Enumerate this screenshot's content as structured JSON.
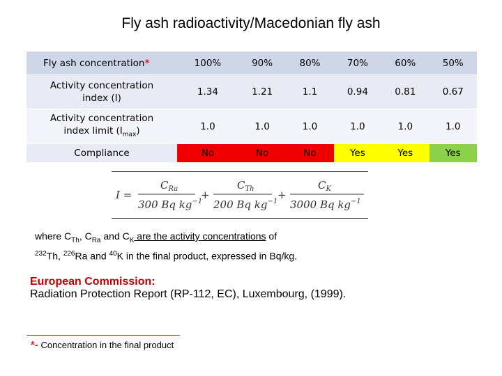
{
  "title": "Fly ash radioactivity/Macedonian fly ash",
  "table": {
    "row1": {
      "label": "Fly ash concentration",
      "marker": "*",
      "values": [
        "100%",
        "90%",
        "80%",
        "70%",
        "60%",
        "50%"
      ]
    },
    "row2": {
      "label_line1": "Activity concentration",
      "label_line2": "index (I)",
      "values": [
        "1.34",
        "1.21",
        "1.1",
        "0.94",
        "0.81",
        "0.67"
      ]
    },
    "row3": {
      "label_line1": "Activity concentration",
      "label_line2_pre": "index limit (I",
      "label_sub": "max",
      "label_line2_post": ")",
      "values": [
        "1.0",
        "1.0",
        "1.0",
        "1.0",
        "1.0",
        "1.0"
      ]
    },
    "row4": {
      "label": "Compliance",
      "values": [
        "No",
        "No",
        "No",
        "Yes",
        "Yes",
        "Yes"
      ],
      "colors": [
        "#f00000",
        "#f00000",
        "#f00000",
        "#ffff00",
        "#ffff00",
        "#8cd14a"
      ]
    }
  },
  "formula": {
    "lhs": "I =",
    "t1_num": "C",
    "t1_num_sub": "Ra",
    "t1_den": "300  Bq kg",
    "t2_num": "C",
    "t2_num_sub": "Th",
    "t2_den": "200  Bq kg",
    "t3_num": "C",
    "t3_num_sub": "K",
    "t3_den": "3000  Bq kg",
    "exp": "−1",
    "plus": "+"
  },
  "note": {
    "w1": "where C",
    "s1": "Th",
    "w2": ", C",
    "s2": "Ra",
    "w3": " and C",
    "s3": "K",
    "w4": " are the activity concentrations",
    "w5": " of",
    "p1": "232",
    "w6": "Th, ",
    "p2": "226",
    "w7": "Ra and ",
    "p3": "40",
    "w8": "K in the final product, expressed in Bq/kg."
  },
  "reference": {
    "title": "European Commission:",
    "text": "Radiation Protection Report (RP-112, EC), Luxembourg, (1999)."
  },
  "footnote": {
    "marker": "*-",
    "text": " Concentration in the final product"
  }
}
